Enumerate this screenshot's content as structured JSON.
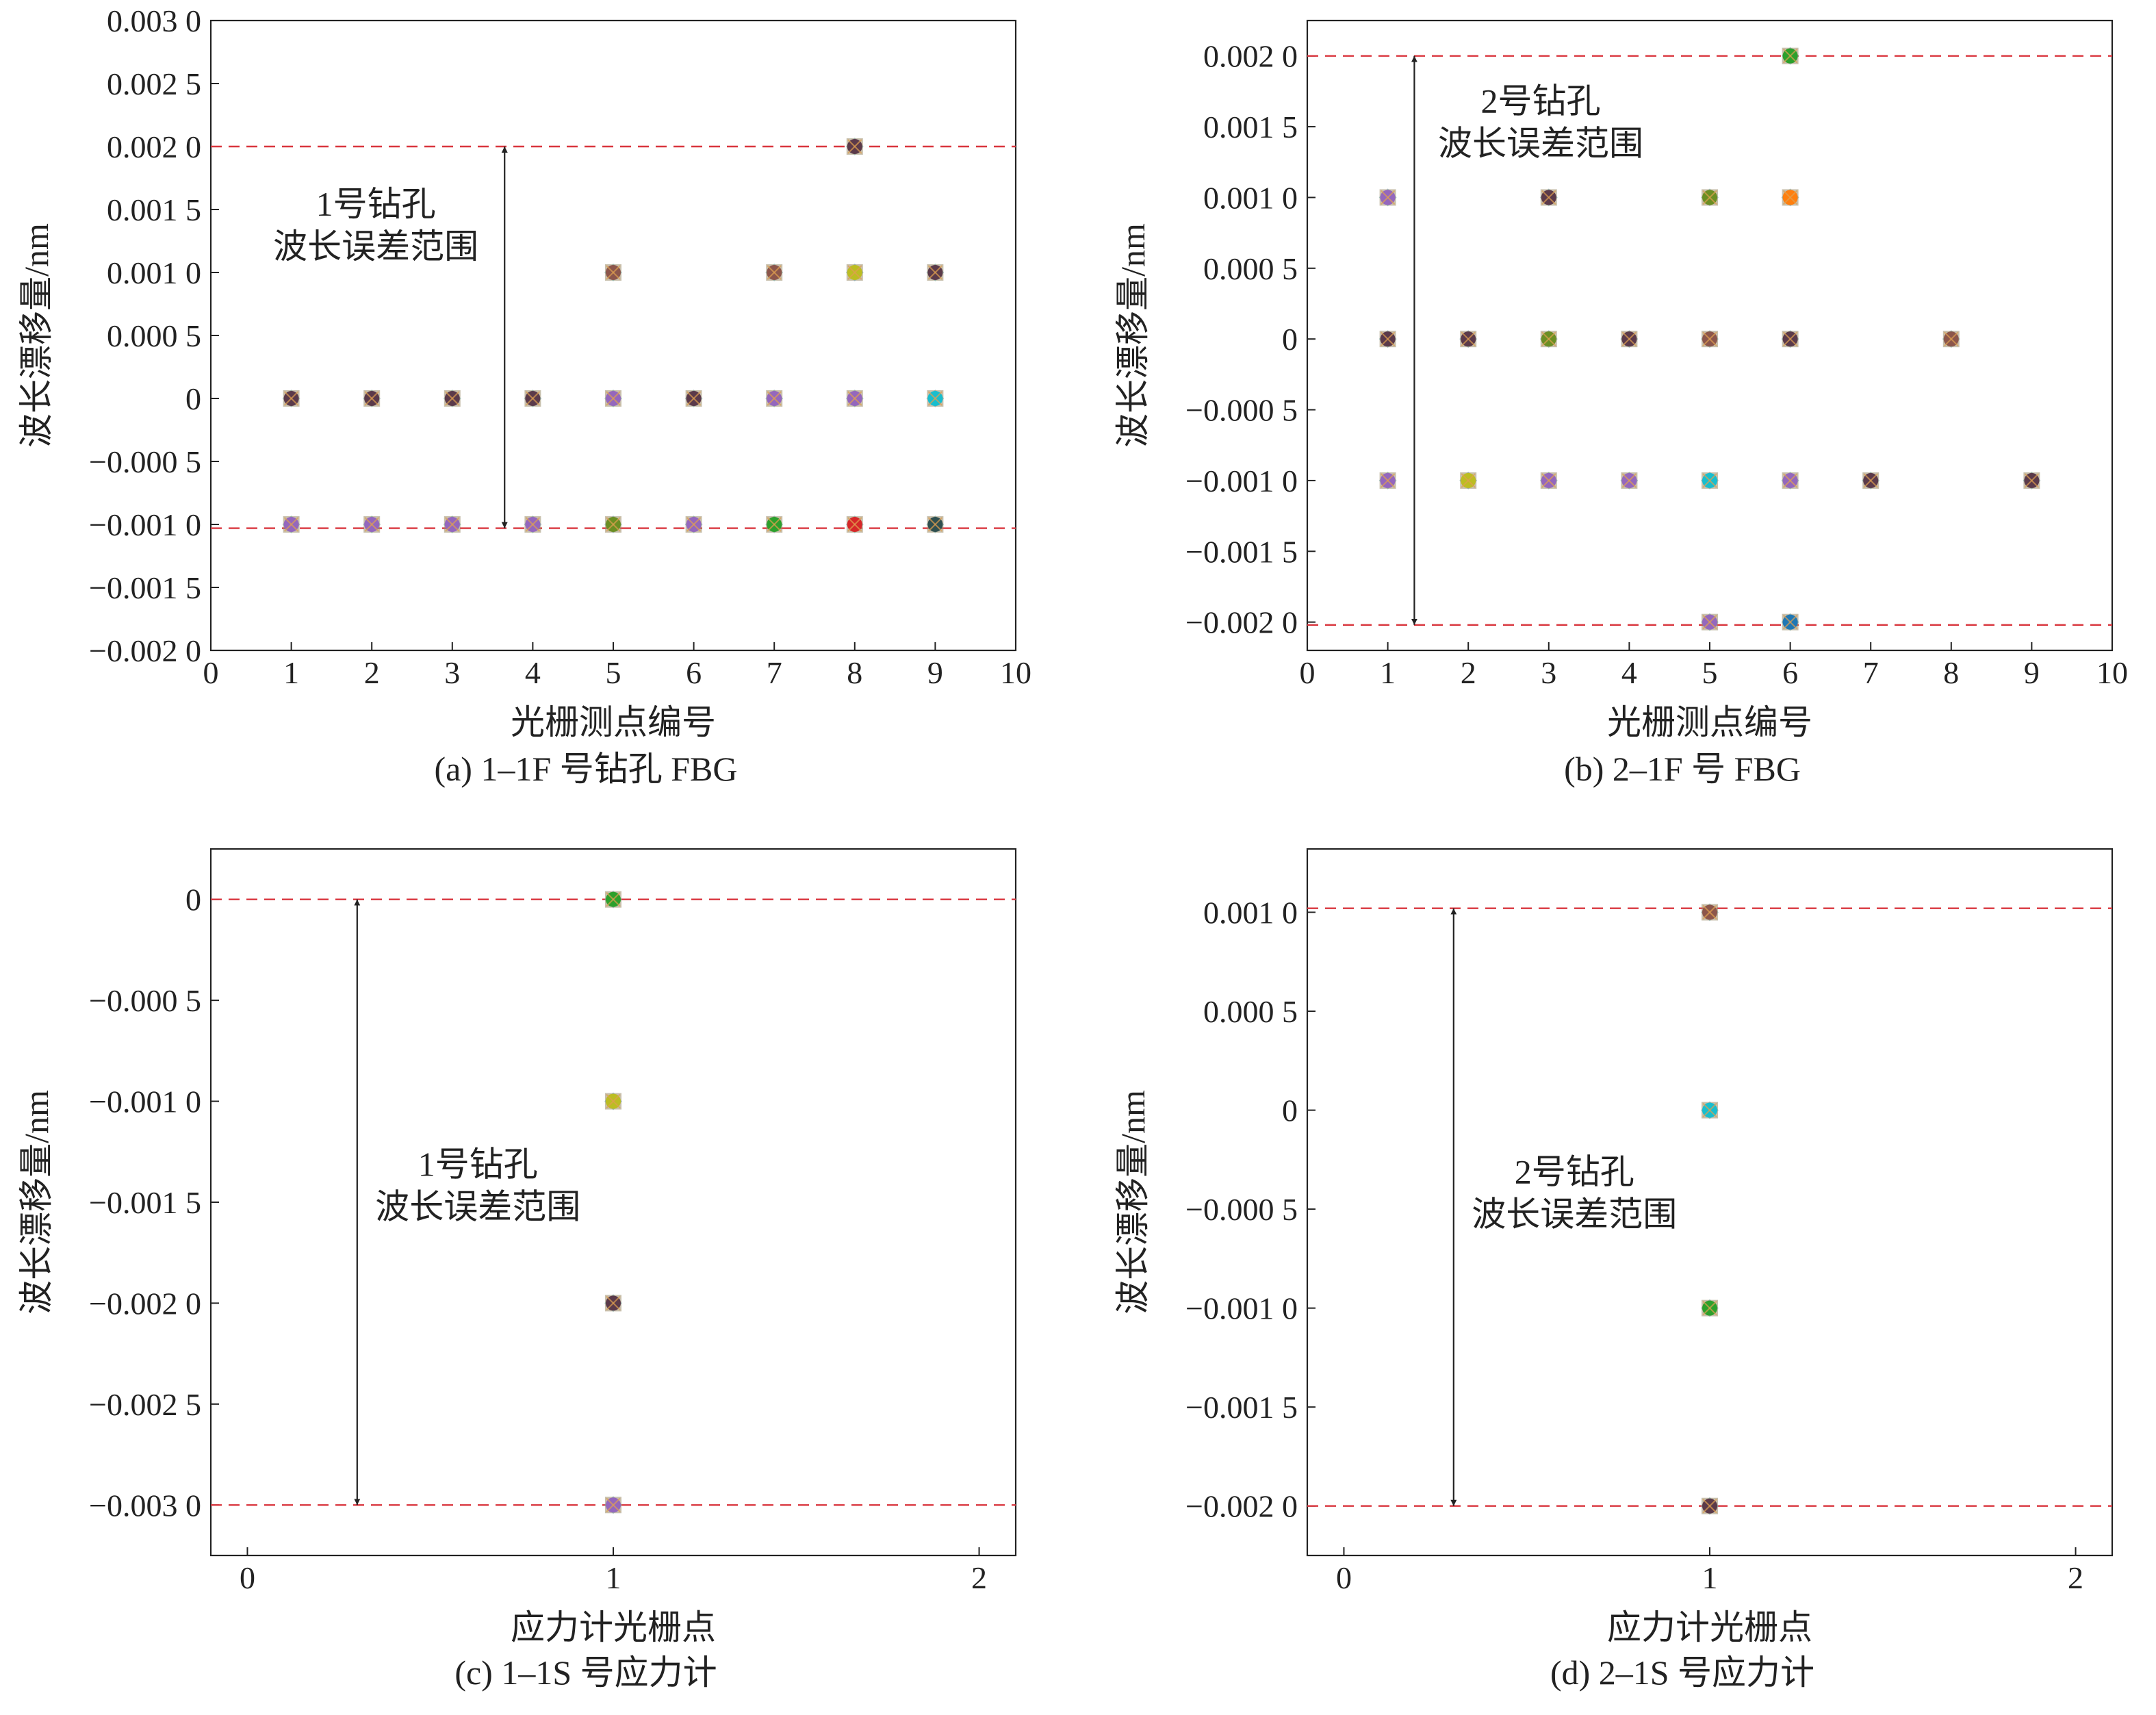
{
  "figure": {
    "guide_color": "#d9363e",
    "marker_colors": [
      "#d62728",
      "#1f77b4",
      "#ff7f0e",
      "#2ca02c",
      "#9467bd",
      "#8c564b",
      "#e377c2",
      "#17becf",
      "#bcbd22",
      "#7f7f7f",
      "#5b3a4a",
      "#6b8e23"
    ]
  },
  "chart_data": [
    {
      "id": "a",
      "type": "scatter",
      "caption": "(a) 1–1F 号钻孔 FBG",
      "xlabel": "光栅测点编号",
      "ylabel": "波长漂移量/nm",
      "xlim": [
        0,
        10
      ],
      "ylim": [
        -0.002,
        0.003
      ],
      "xticks": [
        0,
        1,
        2,
        3,
        4,
        5,
        6,
        7,
        8,
        9,
        10
      ],
      "xtick_labels": [
        "0",
        "1",
        "2",
        "3",
        "4",
        "5",
        "6",
        "7",
        "8",
        "9",
        "10"
      ],
      "yticks": [
        0.003,
        0.0025,
        0.002,
        0.0015,
        0.001,
        0.0005,
        0,
        -0.0005,
        -0.001,
        -0.0015,
        -0.002
      ],
      "ytick_labels": [
        "0.003 0",
        "0.002 5",
        "0.002 0",
        "0.001 5",
        "0.001 0",
        "0.000 5",
        "0",
        "−0.000 5",
        "−0.001 0",
        "−0.001 5",
        "−0.002 0"
      ],
      "hlines": [
        0.002,
        -0.00103
      ],
      "arrow": {
        "x": 3.65,
        "y1": 0.002,
        "y2": -0.00103
      },
      "annotation": {
        "x": 2.05,
        "y": 0.00145,
        "lines": [
          "1号钻孔",
          "波长误差范围"
        ]
      },
      "points": [
        {
          "x": 1,
          "y": 0,
          "c": "#5b3a4a"
        },
        {
          "x": 1,
          "y": -0.001,
          "c": "#9467bd"
        },
        {
          "x": 2,
          "y": 0,
          "c": "#5b3a4a"
        },
        {
          "x": 2,
          "y": -0.001,
          "c": "#9467bd"
        },
        {
          "x": 3,
          "y": 0,
          "c": "#5b3a4a"
        },
        {
          "x": 3,
          "y": -0.001,
          "c": "#9467bd"
        },
        {
          "x": 4,
          "y": 0,
          "c": "#5b3a4a"
        },
        {
          "x": 4,
          "y": -0.001,
          "c": "#9467bd"
        },
        {
          "x": 5,
          "y": 0.001,
          "c": "#8c564b"
        },
        {
          "x": 5,
          "y": 0,
          "c": "#9467bd"
        },
        {
          "x": 5,
          "y": -0.001,
          "c": "#6b8e23"
        },
        {
          "x": 6,
          "y": 0,
          "c": "#5b3a4a"
        },
        {
          "x": 6,
          "y": -0.001,
          "c": "#9467bd"
        },
        {
          "x": 7,
          "y": 0.001,
          "c": "#8c564b"
        },
        {
          "x": 7,
          "y": 0,
          "c": "#9467bd"
        },
        {
          "x": 7,
          "y": -0.001,
          "c": "#2ca02c"
        },
        {
          "x": 8,
          "y": 0.002,
          "c": "#5b3a4a"
        },
        {
          "x": 8,
          "y": 0.001,
          "c": "#bcbd22"
        },
        {
          "x": 8,
          "y": 0,
          "c": "#9467bd"
        },
        {
          "x": 8,
          "y": -0.001,
          "c": "#d62728"
        },
        {
          "x": 9,
          "y": 0.001,
          "c": "#5b3a4a"
        },
        {
          "x": 9,
          "y": 0,
          "c": "#17becf"
        },
        {
          "x": 9,
          "y": -0.001,
          "c": "#2f4f4f"
        }
      ]
    },
    {
      "id": "b",
      "type": "scatter",
      "caption": "(b) 2–1F 号 FBG",
      "xlabel": "光栅测点编号",
      "ylabel": "波长漂移量/nm",
      "xlim": [
        0,
        10
      ],
      "ylim": [
        -0.0022,
        0.00225
      ],
      "xticks": [
        0,
        1,
        2,
        3,
        4,
        5,
        6,
        7,
        8,
        9,
        10
      ],
      "xtick_labels": [
        "0",
        "1",
        "2",
        "3",
        "4",
        "5",
        "6",
        "7",
        "8",
        "9",
        "10"
      ],
      "yticks": [
        0.002,
        0.0015,
        0.001,
        0.0005,
        0,
        -0.0005,
        -0.001,
        -0.0015,
        -0.002
      ],
      "ytick_labels": [
        "0.002 0",
        "0.001 5",
        "0.001 0",
        "0.000 5",
        "0",
        "−0.000 5",
        "−0.001 0",
        "−0.001 5",
        "−0.002 0"
      ],
      "hlines": [
        0.002,
        -0.00202
      ],
      "arrow": {
        "x": 1.33,
        "y1": 0.002,
        "y2": -0.00202
      },
      "annotation": {
        "x": 2.9,
        "y": 0.0016,
        "lines": [
          "2号钻孔",
          "波长误差范围"
        ]
      },
      "points": [
        {
          "x": 1,
          "y": 0.001,
          "c": "#9467bd"
        },
        {
          "x": 1,
          "y": 0,
          "c": "#5b3a4a"
        },
        {
          "x": 1,
          "y": -0.001,
          "c": "#9467bd"
        },
        {
          "x": 2,
          "y": 0,
          "c": "#5b3a4a"
        },
        {
          "x": 2,
          "y": -0.001,
          "c": "#bcbd22"
        },
        {
          "x": 3,
          "y": 0.001,
          "c": "#5b3a4a"
        },
        {
          "x": 3,
          "y": 0,
          "c": "#6b8e23"
        },
        {
          "x": 3,
          "y": -0.001,
          "c": "#9467bd"
        },
        {
          "x": 4,
          "y": 0,
          "c": "#5b3a4a"
        },
        {
          "x": 4,
          "y": -0.001,
          "c": "#9467bd"
        },
        {
          "x": 5,
          "y": 0.001,
          "c": "#6b8e23"
        },
        {
          "x": 5,
          "y": 0,
          "c": "#8c564b"
        },
        {
          "x": 5,
          "y": -0.001,
          "c": "#17becf"
        },
        {
          "x": 5,
          "y": -0.002,
          "c": "#9467bd"
        },
        {
          "x": 6,
          "y": 0.002,
          "c": "#2ca02c"
        },
        {
          "x": 6,
          "y": 0.001,
          "c": "#ff7f0e"
        },
        {
          "x": 6,
          "y": 0,
          "c": "#5b3a4a"
        },
        {
          "x": 6,
          "y": -0.001,
          "c": "#9467bd"
        },
        {
          "x": 6,
          "y": -0.002,
          "c": "#1f77b4"
        },
        {
          "x": 7,
          "y": -0.001,
          "c": "#5b3a4a"
        },
        {
          "x": 8,
          "y": 0,
          "c": "#8c564b"
        },
        {
          "x": 9,
          "y": -0.001,
          "c": "#5b3a4a"
        }
      ]
    },
    {
      "id": "c",
      "type": "scatter",
      "caption": "(c) 1–1S 号应力计",
      "xlabel": "应力计光栅点",
      "ylabel": "波长漂移量/nm",
      "xlim": [
        -0.1,
        2.1
      ],
      "ylim": [
        -0.00325,
        0.00025
      ],
      "xticks": [
        0,
        1,
        2
      ],
      "xtick_labels": [
        "0",
        "1",
        "2"
      ],
      "yticks": [
        0,
        -0.0005,
        -0.001,
        -0.0015,
        -0.002,
        -0.0025,
        -0.003
      ],
      "ytick_labels": [
        "0",
        "−0.000 5",
        "−0.001 0",
        "−0.001 5",
        "−0.002 0",
        "−0.002 5",
        "−0.003 0"
      ],
      "hlines": [
        0,
        -0.003
      ],
      "arrow": {
        "x": 0.3,
        "y1": 0,
        "y2": -0.003
      },
      "annotation": {
        "x": 0.63,
        "y": -0.00137,
        "lines": [
          "1号钻孔",
          "波长误差范围"
        ]
      },
      "points": [
        {
          "x": 1,
          "y": 0,
          "c": "#2ca02c"
        },
        {
          "x": 1,
          "y": -0.001,
          "c": "#bcbd22"
        },
        {
          "x": 1,
          "y": -0.002,
          "c": "#5b3a4a"
        },
        {
          "x": 1,
          "y": -0.003,
          "c": "#9467bd"
        }
      ]
    },
    {
      "id": "d",
      "type": "scatter",
      "caption": "(d) 2–1S 号应力计",
      "xlabel": "应力计光栅点",
      "ylabel": "波长漂移量/nm",
      "xlim": [
        -0.1,
        2.1
      ],
      "ylim": [
        -0.00225,
        0.00132
      ],
      "xticks": [
        0,
        1,
        2
      ],
      "xtick_labels": [
        "0",
        "1",
        "2"
      ],
      "yticks": [
        0.001,
        0.0005,
        0,
        -0.0005,
        -0.001,
        -0.0015,
        -0.002
      ],
      "ytick_labels": [
        "0.001 0",
        "0.000 5",
        "0",
        "−0.000 5",
        "−0.001 0",
        "−0.001 5",
        "−0.002 0"
      ],
      "hlines": [
        0.00102,
        -0.002
      ],
      "arrow": {
        "x": 0.3,
        "y1": 0.00102,
        "y2": -0.002
      },
      "annotation": {
        "x": 0.63,
        "y": -0.00037,
        "lines": [
          "2号钻孔",
          "波长误差范围"
        ]
      },
      "points": [
        {
          "x": 1,
          "y": 0.001,
          "c": "#8c564b"
        },
        {
          "x": 1,
          "y": 0,
          "c": "#17becf"
        },
        {
          "x": 1,
          "y": -0.001,
          "c": "#2ca02c"
        },
        {
          "x": 1,
          "y": -0.002,
          "c": "#5b3a4a"
        }
      ]
    }
  ]
}
